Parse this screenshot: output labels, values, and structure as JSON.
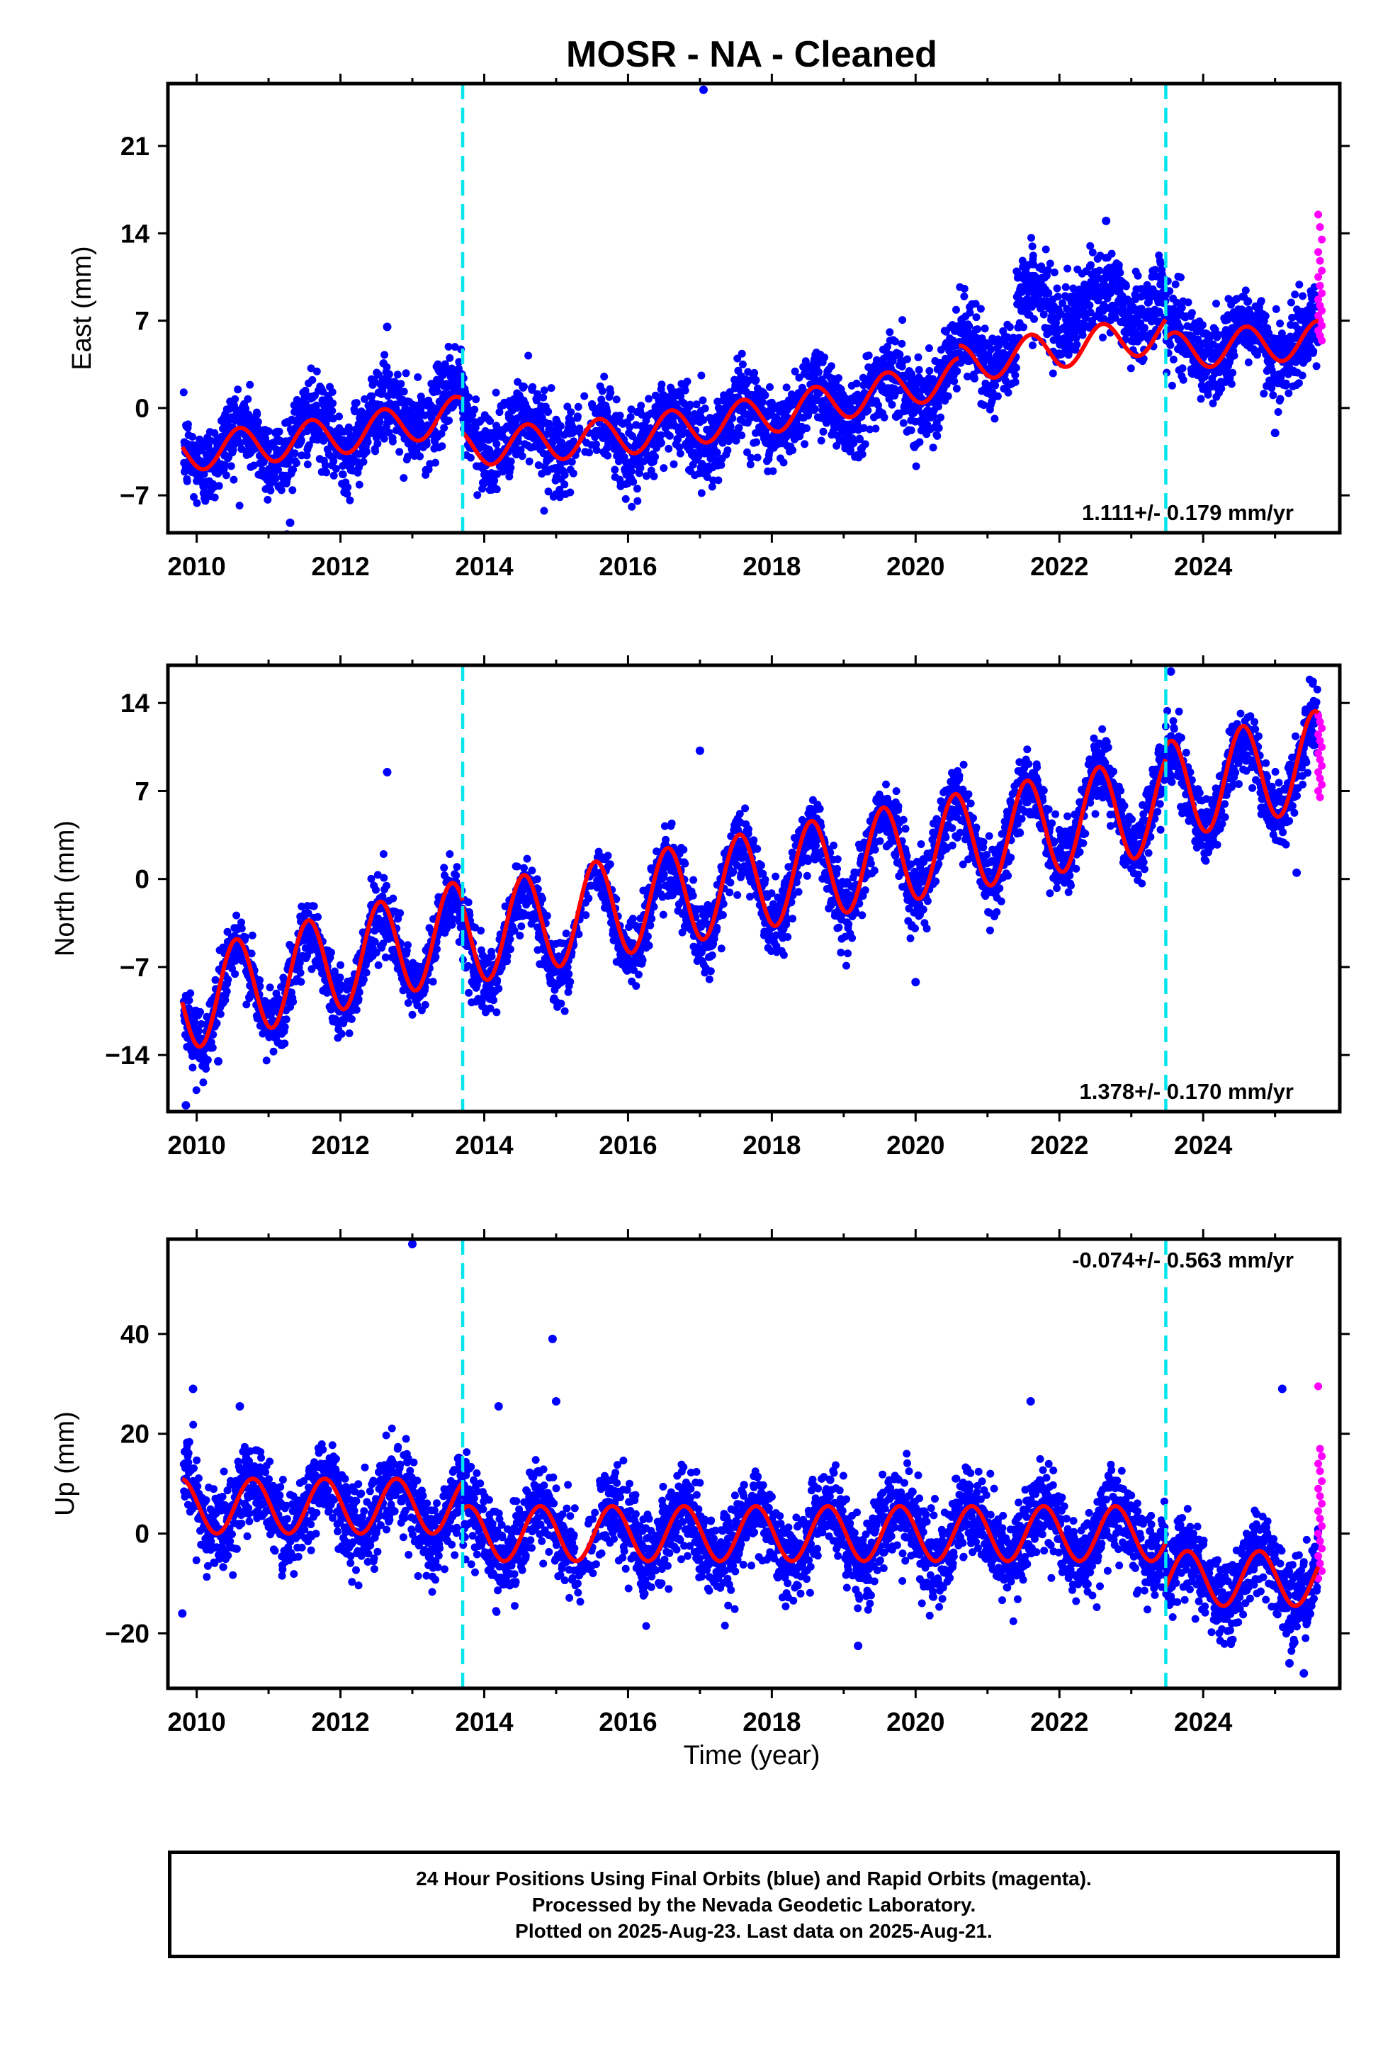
{
  "title": "MOSR  - NA - Cleaned",
  "colors": {
    "final_orbits": "#0000ff",
    "rapid_orbits": "#ff00ff",
    "model": "#ff0000",
    "offset_lines": "#00e5ee",
    "axes": "#000000"
  },
  "footer": {
    "line1": "24 Hour Positions Using Final Orbits (blue) and Rapid Orbits (magenta).",
    "line2": "Processed by the Nevada Geodetic Laboratory.",
    "line3": "Plotted on 2025-Aug-23. Last data on 2025-Aug-21."
  },
  "chart_data": [
    {
      "type": "scatter",
      "ylabel": "East (mm)",
      "xlabel": "",
      "xlim": [
        2009.6,
        2025.9
      ],
      "ylim": [
        -10,
        26
      ],
      "xticks": [
        2010,
        2012,
        2014,
        2016,
        2018,
        2020,
        2022,
        2024
      ],
      "yticks": [
        -7,
        0,
        7,
        14,
        21
      ],
      "rate_text": "1.111+/- 0.179 mm/yr",
      "rate_position": "bottom-right",
      "offset_epochs": [
        2013.7,
        2023.48
      ],
      "series": [
        {
          "kind": "final_orbits",
          "trend": {
            "base": -3.5,
            "slope": 0,
            "start": 2009.8
          },
          "segments": [
            {
              "t0": 2009.8,
              "t1": 2012.0,
              "a": -3.5,
              "b": -2.0
            },
            {
              "t0": 2012.0,
              "t1": 2013.7,
              "a": -2.0,
              "b": 0.5
            },
            {
              "t0": 2013.7,
              "t1": 2016.0,
              "a": -2.0,
              "b": -2.5
            },
            {
              "t0": 2016.0,
              "t1": 2018.0,
              "a": -2.5,
              "b": -0.5
            },
            {
              "t0": 2018.0,
              "t1": 2020.6,
              "a": -0.5,
              "b": 2.5
            },
            {
              "t0": 2020.6,
              "t1": 2021.4,
              "a": 4.5,
              "b": 4.5
            },
            {
              "t0": 2021.4,
              "t1": 2023.48,
              "a": 8.0,
              "b": 8.5
            },
            {
              "t0": 2023.48,
              "t1": 2025.6,
              "a": 5.0,
              "b": 5.5
            }
          ],
          "annual_amp": 1.6,
          "noise": 1.6,
          "outliers": [
            {
              "x": 2017.05,
              "y": 25.5
            },
            {
              "x": 2011.3,
              "y": -9.2
            },
            {
              "x": 2012.65,
              "y": 6.5
            },
            {
              "x": 2022.65,
              "y": 15.0
            },
            {
              "x": 2025.0,
              "y": -2.0
            }
          ]
        },
        {
          "kind": "rapid_orbits",
          "x_range": [
            2025.6,
            2025.65
          ],
          "y_values": [
            15.5,
            14.5,
            13.5,
            12.5,
            11.8,
            11.0,
            10.5,
            9.8,
            9.2,
            8.7,
            8.2,
            7.8,
            7.4,
            7.0,
            6.6,
            6.2,
            5.8,
            5.4
          ]
        },
        {
          "kind": "model",
          "segments": [
            {
              "t0": 2009.8,
              "t1": 2012.0,
              "a": -3.6,
              "b": -2.2
            },
            {
              "t0": 2012.0,
              "t1": 2013.7,
              "a": -2.2,
              "b": -0.5
            },
            {
              "t0": 2013.7,
              "t1": 2016.0,
              "a": -3.2,
              "b": -2.2
            },
            {
              "t0": 2016.0,
              "t1": 2018.0,
              "a": -2.2,
              "b": -0.5
            },
            {
              "t0": 2018.0,
              "t1": 2020.6,
              "a": -0.5,
              "b": 2.5
            },
            {
              "t0": 2020.6,
              "t1": 2023.48,
              "a": 3.5,
              "b": 6.0
            },
            {
              "t0": 2023.48,
              "t1": 2025.6,
              "a": 4.5,
              "b": 5.5
            }
          ],
          "annual_amp": 1.5
        }
      ]
    },
    {
      "type": "scatter",
      "ylabel": "North (mm)",
      "xlabel": "",
      "xlim": [
        2009.6,
        2025.9
      ],
      "ylim": [
        -18.5,
        17
      ],
      "xticks": [
        2010,
        2012,
        2014,
        2016,
        2018,
        2020,
        2022,
        2024
      ],
      "yticks": [
        -14,
        -7,
        0,
        7,
        14
      ],
      "rate_text": "1.378+/- 0.170 mm/yr",
      "rate_position": "bottom-right",
      "offset_epochs": [
        2013.7,
        2023.48
      ],
      "series": [
        {
          "kind": "final_orbits",
          "segments": [
            {
              "t0": 2009.8,
              "t1": 2013.7,
              "a": -10.0,
              "b": -4.5
            },
            {
              "t0": 2013.7,
              "t1": 2023.48,
              "a": -5.5,
              "b": 6.5
            },
            {
              "t0": 2023.48,
              "t1": 2025.6,
              "a": 6.5,
              "b": 9.0
            }
          ],
          "annual_amp": 3.5,
          "noise": 1.3,
          "outliers": [
            {
              "x": 2009.85,
              "y": -18.0
            },
            {
              "x": 2010.3,
              "y": -14.5
            },
            {
              "x": 2017.0,
              "y": 10.2
            },
            {
              "x": 2020.0,
              "y": -8.2
            },
            {
              "x": 2023.55,
              "y": 16.5
            },
            {
              "x": 2012.65,
              "y": 8.5
            },
            {
              "x": 2025.3,
              "y": 0.5
            }
          ]
        },
        {
          "kind": "rapid_orbits",
          "x_range": [
            2025.6,
            2025.65
          ],
          "y_values": [
            13.0,
            12.5,
            12.0,
            11.5,
            11.0,
            10.5,
            10.0,
            9.5,
            9.0,
            8.5,
            8.0,
            7.5,
            7.0,
            6.5
          ]
        },
        {
          "kind": "model",
          "segments": [
            {
              "t0": 2009.8,
              "t1": 2013.7,
              "a": -9.8,
              "b": -4.0
            },
            {
              "t0": 2013.7,
              "t1": 2023.48,
              "a": -4.5,
              "b": 6.0
            },
            {
              "t0": 2023.48,
              "t1": 2025.6,
              "a": 7.0,
              "b": 9.5
            }
          ],
          "annual_amp": 3.9
        }
      ]
    },
    {
      "type": "scatter",
      "ylabel": "Up (mm)",
      "xlabel": "Time (year)",
      "xlim": [
        2009.6,
        2025.9
      ],
      "ylim": [
        -31,
        59
      ],
      "xticks": [
        2010,
        2012,
        2014,
        2016,
        2018,
        2020,
        2022,
        2024
      ],
      "yticks": [
        -20,
        0,
        20,
        40
      ],
      "rate_text": "-0.074+/- 0.563 mm/yr",
      "rate_position": "top-right",
      "offset_epochs": [
        2013.7,
        2023.48
      ],
      "series": [
        {
          "kind": "final_orbits",
          "segments": [
            {
              "t0": 2009.8,
              "t1": 2013.7,
              "a": 5.5,
              "b": 5.5
            },
            {
              "t0": 2013.7,
              "t1": 2023.48,
              "a": 0.0,
              "b": 0.0
            },
            {
              "t0": 2023.48,
              "t1": 2025.6,
              "a": -9.0,
              "b": -9.0
            }
          ],
          "annual_amp": 5.5,
          "noise": 4.2,
          "outliers": [
            {
              "x": 2013.0,
              "y": 58.0
            },
            {
              "x": 2014.95,
              "y": 39.0
            },
            {
              "x": 2009.95,
              "y": 29.0
            },
            {
              "x": 2025.1,
              "y": 29.0
            },
            {
              "x": 2021.6,
              "y": 26.5
            },
            {
              "x": 2015.0,
              "y": 26.5
            },
            {
              "x": 2014.2,
              "y": 25.5
            },
            {
              "x": 2010.6,
              "y": 25.5
            },
            {
              "x": 2009.8,
              "y": -16.0
            },
            {
              "x": 2025.2,
              "y": -26.0
            },
            {
              "x": 2025.4,
              "y": -28.0
            },
            {
              "x": 2019.2,
              "y": -22.5
            }
          ]
        },
        {
          "kind": "rapid_orbits",
          "x_range": [
            2025.6,
            2025.65
          ],
          "y_values": [
            29.5,
            17.0,
            15.5,
            14.0,
            12.5,
            10.5,
            9.0,
            7.5,
            6.0,
            4.5,
            3.0,
            1.5,
            0.0,
            -1.5,
            -3.0,
            -4.5,
            -6.0,
            -7.5,
            -9.0
          ]
        },
        {
          "kind": "model",
          "segments": [
            {
              "t0": 2009.8,
              "t1": 2013.7,
              "a": 5.5,
              "b": 5.5
            },
            {
              "t0": 2013.7,
              "t1": 2023.48,
              "a": 0.0,
              "b": 0.0
            },
            {
              "t0": 2023.48,
              "t1": 2025.6,
              "a": -9.0,
              "b": -9.0
            }
          ],
          "annual_amp": 5.5
        }
      ]
    }
  ]
}
